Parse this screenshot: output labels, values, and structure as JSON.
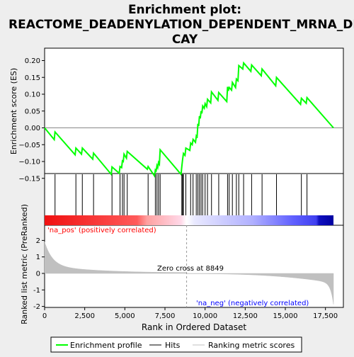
{
  "title_line1": "Enrichment plot:",
  "title_line2": "REACTOME_DEADENYLATION_DEPENDENT_MRNA_DE",
  "title_line3": "CAY",
  "top_ylabel": "Enrichment score (ES)",
  "bottom_ylabel": "Ranked list metric (PreRanked)",
  "xlabel": "Rank in Ordered Dataset",
  "pos_label": "'na_pos' (positively correlated)",
  "neg_label": "'na_neg' (negatively correlated)",
  "zero_cross_label": "Zero cross at 8849",
  "legend": {
    "enrichment": "Enrichment profile",
    "hits": "Hits",
    "ranking": "Ranking metric scores"
  },
  "colors": {
    "enrichment": "#00ff00",
    "hits": "#000000",
    "ranking": "#c0c0c0",
    "positive": "#ff0000",
    "negative": "#0000ff"
  },
  "chart_data": {
    "type": "line",
    "x_range": [
      0,
      18000
    ],
    "es_ylim": [
      -0.16,
      0.21
    ],
    "es_yticks": [
      -0.15,
      -0.1,
      -0.05,
      0.0,
      0.05,
      0.1,
      0.15,
      0.2
    ],
    "es_ytick_labels": [
      "−0.15",
      "−0.10",
      "−0.05",
      "0.00",
      "0.05",
      "0.10",
      "0.15",
      "0.20"
    ],
    "metric_ylim": [
      -2,
      2
    ],
    "metric_yticks": [
      -2,
      -1,
      0,
      1,
      2
    ],
    "metric_ytick_labels": [
      "-2",
      "-1",
      "0",
      "1",
      "2"
    ],
    "xticks": [
      0,
      2500,
      5000,
      7500,
      10000,
      12500,
      15000,
      17500
    ],
    "xtick_labels": [
      "0",
      "2,500",
      "5,000",
      "7,500",
      "10,000",
      "12,500",
      "15,000",
      "17,500"
    ],
    "zero_cross": 8849,
    "n_genes": 18000,
    "hits": [
      650,
      1950,
      2350,
      3050,
      4200,
      4700,
      4850,
      4950,
      5150,
      6450,
      6900,
      7000,
      7100,
      7200,
      8550,
      8600,
      8650,
      8800,
      9100,
      9250,
      9450,
      9550,
      9650,
      9750,
      9850,
      10000,
      10150,
      10400,
      10850,
      11400,
      11500,
      11700,
      11950,
      12100,
      12400,
      12900,
      13550,
      14450,
      16000,
      16350
    ],
    "enrichment_profile": [
      [
        0,
        0.0
      ],
      [
        600,
        -0.035
      ],
      [
        650,
        -0.012
      ],
      [
        1900,
        -0.08
      ],
      [
        1950,
        -0.06
      ],
      [
        2300,
        -0.078
      ],
      [
        2350,
        -0.06
      ],
      [
        3000,
        -0.093
      ],
      [
        3050,
        -0.075
      ],
      [
        4150,
        -0.138
      ],
      [
        4200,
        -0.116
      ],
      [
        4650,
        -0.135
      ],
      [
        4700,
        -0.115
      ],
      [
        4800,
        -0.118
      ],
      [
        4850,
        -0.098
      ],
      [
        4900,
        -0.1
      ],
      [
        4950,
        -0.078
      ],
      [
        5100,
        -0.09
      ],
      [
        5150,
        -0.07
      ],
      [
        6400,
        -0.123
      ],
      [
        6450,
        -0.115
      ],
      [
        6850,
        -0.143
      ],
      [
        6900,
        -0.125
      ],
      [
        6950,
        -0.128
      ],
      [
        7000,
        -0.112
      ],
      [
        7050,
        -0.118
      ],
      [
        7100,
        -0.103
      ],
      [
        7150,
        -0.108
      ],
      [
        7200,
        -0.065
      ],
      [
        8500,
        -0.138
      ],
      [
        8550,
        -0.115
      ],
      [
        8600,
        -0.094
      ],
      [
        8650,
        -0.076
      ],
      [
        8750,
        -0.082
      ],
      [
        8800,
        -0.06
      ],
      [
        9050,
        -0.067
      ],
      [
        9100,
        -0.045
      ],
      [
        9200,
        -0.05
      ],
      [
        9250,
        -0.034
      ],
      [
        9400,
        -0.043
      ],
      [
        9450,
        -0.025
      ],
      [
        9500,
        -0.03
      ],
      [
        9550,
        0.012
      ],
      [
        9600,
        0.005
      ],
      [
        9650,
        0.035
      ],
      [
        9700,
        0.028
      ],
      [
        9750,
        0.05
      ],
      [
        9800,
        0.043
      ],
      [
        9850,
        0.065
      ],
      [
        9950,
        0.058
      ],
      [
        10000,
        0.072
      ],
      [
        10100,
        0.063
      ],
      [
        10150,
        0.085
      ],
      [
        10350,
        0.074
      ],
      [
        10400,
        0.107
      ],
      [
        10800,
        0.082
      ],
      [
        10850,
        0.105
      ],
      [
        11350,
        0.078
      ],
      [
        11400,
        0.122
      ],
      [
        11450,
        0.11
      ],
      [
        11500,
        0.12
      ],
      [
        11650,
        0.112
      ],
      [
        11700,
        0.135
      ],
      [
        11900,
        0.12
      ],
      [
        11950,
        0.145
      ],
      [
        12050,
        0.14
      ],
      [
        12100,
        0.185
      ],
      [
        12350,
        0.175
      ],
      [
        12400,
        0.193
      ],
      [
        12850,
        0.168
      ],
      [
        12900,
        0.187
      ],
      [
        13500,
        0.155
      ],
      [
        13550,
        0.175
      ],
      [
        14400,
        0.125
      ],
      [
        14450,
        0.15
      ],
      [
        15950,
        0.07
      ],
      [
        16000,
        0.088
      ],
      [
        16300,
        0.073
      ],
      [
        16350,
        0.09
      ],
      [
        18000,
        0.0
      ]
    ]
  }
}
